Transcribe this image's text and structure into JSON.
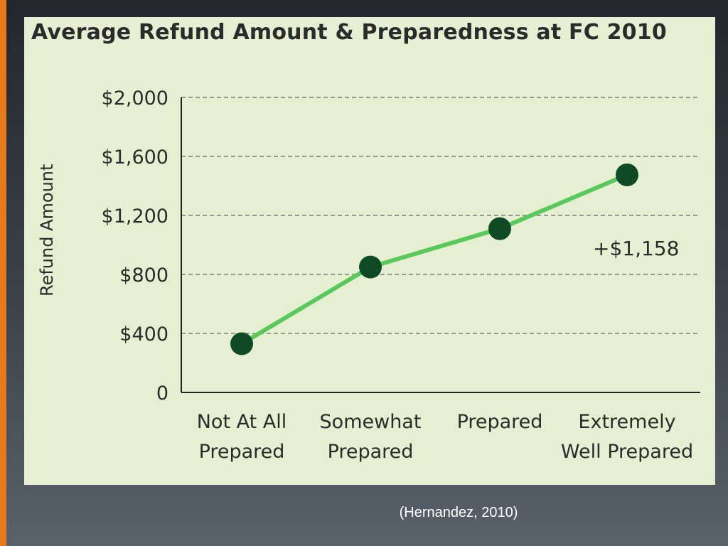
{
  "slide": {
    "citation": "(Hernandez, 2010)",
    "accent_color": "#e87a1c",
    "background_color": "#3b424b"
  },
  "chart_data": {
    "type": "line",
    "title": "Average Refund Amount & Preparedness at FC 2010",
    "xlabel": "",
    "ylabel": "Refund Amount",
    "categories": [
      [
        "Not At All",
        "Prepared"
      ],
      [
        "Somewhat",
        "Prepared"
      ],
      [
        "Prepared"
      ],
      [
        "Extremely",
        "Well Prepared"
      ]
    ],
    "series": [
      {
        "values": [
          330,
          850,
          1110,
          1475
        ],
        "color": "#58c95a",
        "marker_color": "#0d4a25"
      }
    ],
    "yticks": [
      0,
      400,
      800,
      1200,
      1600,
      2000
    ],
    "ytick_labels": [
      "0",
      "$400",
      "$800",
      "$1,200",
      "$1,600",
      "$2,000"
    ],
    "ylim": [
      0,
      2000
    ],
    "grid": "horizontal-dashed",
    "annotations": [
      {
        "text": "+$1,158",
        "near": "right of Prepared point"
      }
    ],
    "plot_background": "#e6efd2"
  }
}
